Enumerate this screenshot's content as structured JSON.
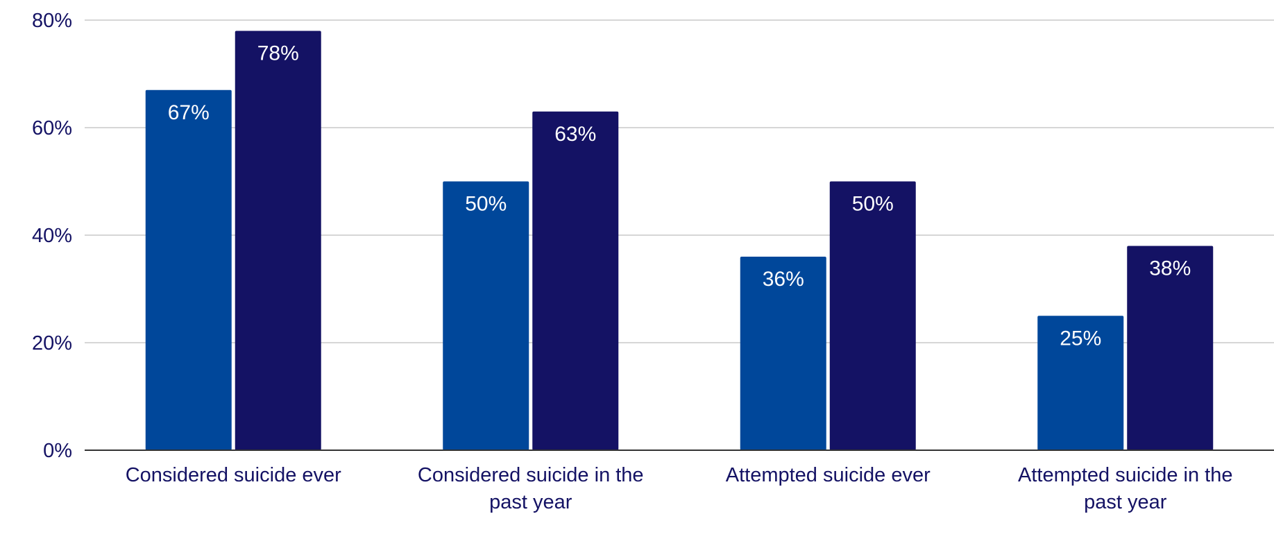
{
  "chart_data": {
    "type": "bar",
    "title": "",
    "xlabel": "",
    "ylabel": "",
    "ylim": [
      0,
      80
    ],
    "yticks": [
      0,
      20,
      40,
      60,
      80
    ],
    "ytick_labels": [
      "0%",
      "20%",
      "40%",
      "60%",
      "80%"
    ],
    "grid": true,
    "legend": "none",
    "categories": [
      [
        "Considered suicide ever"
      ],
      [
        "Considered suicide in the",
        "past year"
      ],
      [
        "Attempted suicide ever"
      ],
      [
        "Attempted suicide in the",
        "past year"
      ]
    ],
    "series": [
      {
        "name": "Series 1",
        "color": "#00479a",
        "values": [
          67,
          50,
          36,
          25
        ],
        "labels": [
          "67%",
          "50%",
          "36%",
          "25%"
        ]
      },
      {
        "name": "Series 2",
        "color": "#141264",
        "values": [
          78,
          63,
          50,
          38
        ],
        "labels": [
          "78%",
          "63%",
          "50%",
          "38%"
        ]
      }
    ],
    "colors": {
      "text": "#141264",
      "grid": "#c8c8c8",
      "axis": "#333333"
    }
  }
}
